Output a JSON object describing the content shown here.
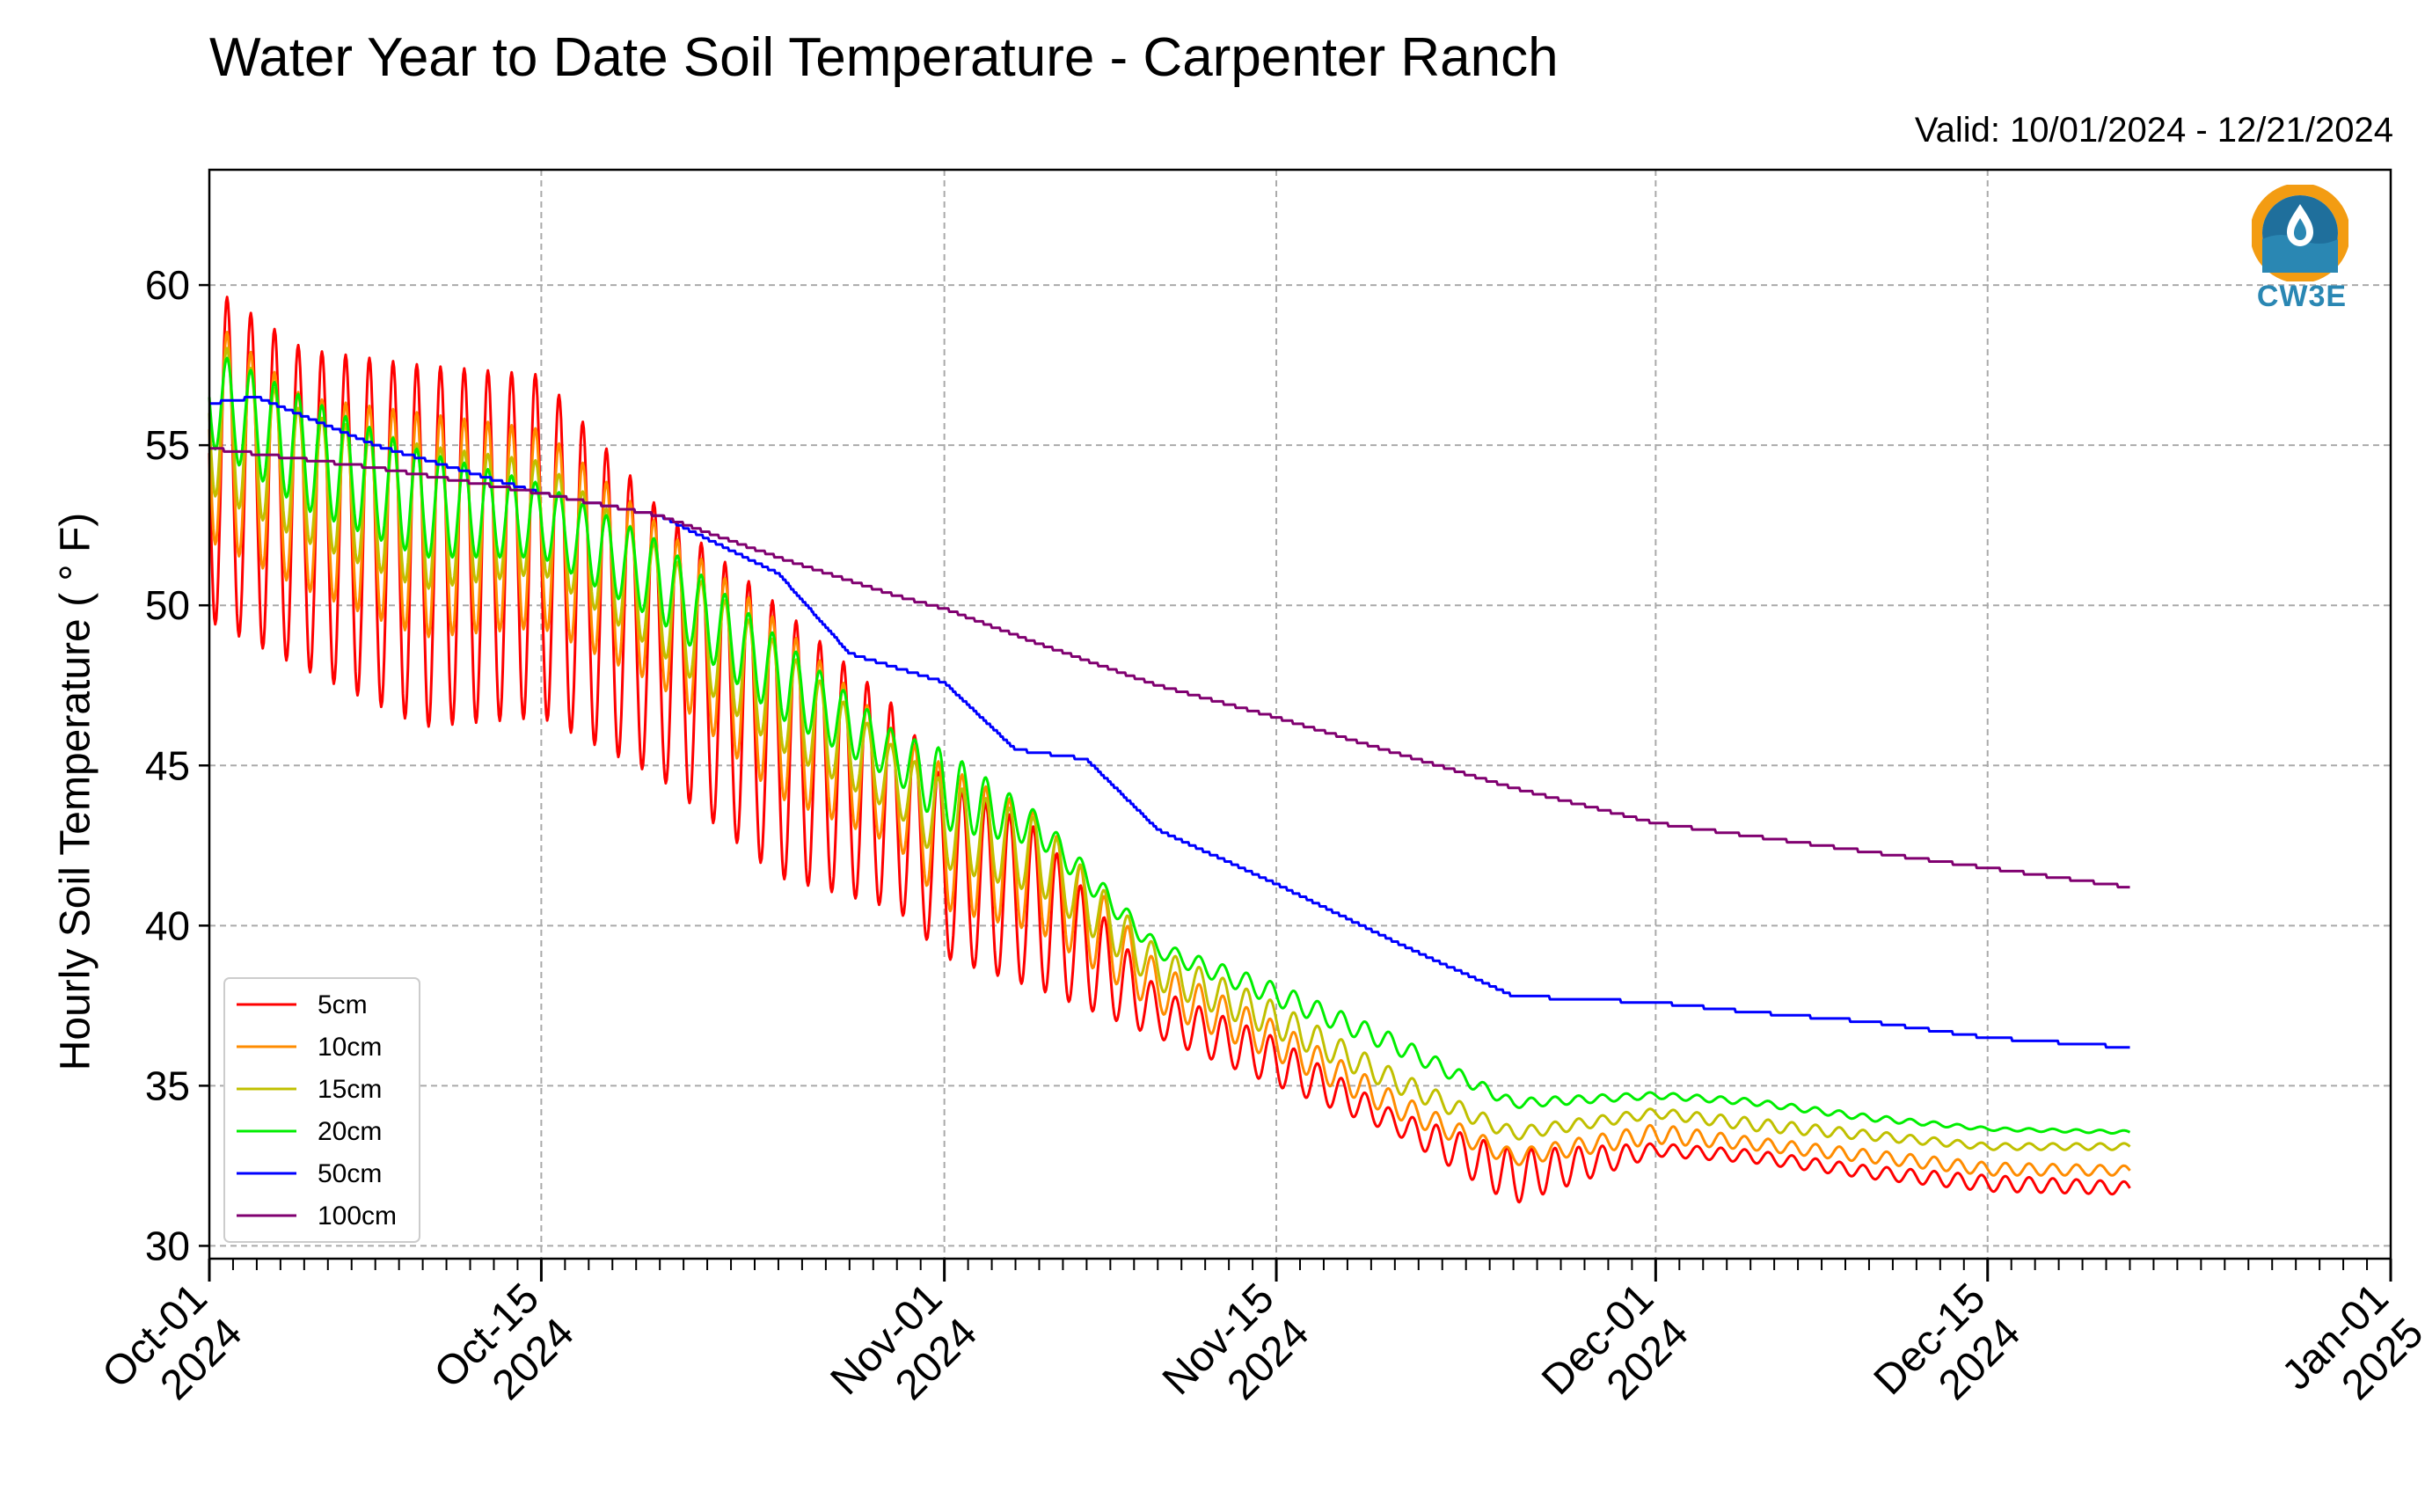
{
  "chart_data": {
    "type": "line",
    "title": "Water Year to Date Soil Temperature - Carpenter Ranch",
    "subtitle": "Valid: 10/01/2024 - 12/21/2024",
    "xlabel": "",
    "ylabel": "Hourly Soil Temperature ($^\\circ$F)",
    "ylabel_display": "Hourly Soil Temperature ( ° F)",
    "xlim": [
      "2024-10-01",
      "2025-01-01"
    ],
    "ylim": [
      29.6,
      63.6
    ],
    "yticks": [
      30,
      35,
      40,
      45,
      50,
      55,
      60
    ],
    "xticks": [
      {
        "date": "2024-10-01",
        "label1": "Oct-01",
        "label2": "2024"
      },
      {
        "date": "2024-10-15",
        "label1": "Oct-15",
        "label2": "2024"
      },
      {
        "date": "2024-11-01",
        "label1": "Nov-01",
        "label2": "2024"
      },
      {
        "date": "2024-11-15",
        "label1": "Nov-15",
        "label2": "2024"
      },
      {
        "date": "2024-12-01",
        "label1": "Dec-01",
        "label2": "2024"
      },
      {
        "date": "2024-12-15",
        "label1": "Dec-15",
        "label2": "2024"
      },
      {
        "date": "2025-01-01",
        "label1": "Jan-01",
        "label2": "2025"
      }
    ],
    "grid": true,
    "legend_position": "lower-left",
    "series": [
      {
        "name": "5cm",
        "color": "#ff0000",
        "daily_swing": true,
        "x": [
          "2024-10-01",
          "2024-10-05",
          "2024-10-10",
          "2024-10-15",
          "2024-10-20",
          "2024-10-25",
          "2024-10-30",
          "2024-11-01",
          "2024-11-05",
          "2024-11-10",
          "2024-11-15",
          "2024-11-20",
          "2024-11-25",
          "2024-12-01",
          "2024-12-05",
          "2024-12-10",
          "2024-12-15",
          "2024-12-21"
        ],
        "y": [
          55.0,
          54.0,
          52.5,
          52.0,
          50.0,
          46.5,
          43.0,
          42.0,
          39.5,
          37.0,
          35.5,
          34.0,
          32.0,
          33.0,
          32.8,
          32.3,
          32.0,
          31.7
        ],
        "y_lo": [
          49.5,
          48.0,
          46.2,
          46.5,
          44.6,
          41.5,
          40.5,
          39.0,
          38.0,
          36.5,
          35.0,
          33.5,
          31.3,
          32.8,
          32.6,
          32.1,
          31.7,
          31.6
        ],
        "y_hi": [
          60.0,
          58.0,
          57.5,
          57.2,
          53.0,
          50.0,
          46.8,
          44.5,
          43.0,
          38.0,
          36.5,
          34.2,
          33.0,
          33.2,
          33.0,
          32.5,
          32.2,
          32.0
        ]
      },
      {
        "name": "10cm",
        "color": "#ff8c00",
        "daily_swing": true,
        "x": [
          "2024-10-01",
          "2024-10-05",
          "2024-10-10",
          "2024-10-15",
          "2024-10-20",
          "2024-10-25",
          "2024-10-30",
          "2024-11-01",
          "2024-11-05",
          "2024-11-10",
          "2024-11-15",
          "2024-11-20",
          "2024-11-25",
          "2024-12-01",
          "2024-12-05",
          "2024-12-10",
          "2024-12-15",
          "2024-12-21"
        ],
        "y": [
          55.5,
          54.0,
          52.8,
          52.3,
          50.2,
          47.0,
          44.0,
          43.0,
          41.5,
          38.0,
          36.5,
          34.5,
          32.7,
          33.5,
          33.2,
          32.8,
          32.4,
          32.3
        ],
        "y_lo": [
          52.0,
          50.5,
          49.0,
          49.3,
          47.5,
          44.0,
          42.5,
          40.5,
          39.8,
          37.3,
          35.8,
          34.0,
          32.5,
          33.2,
          33.0,
          32.6,
          32.2,
          32.2
        ],
        "y_hi": [
          59.0,
          56.5,
          56.0,
          55.5,
          52.5,
          49.5,
          46.0,
          45.0,
          43.5,
          38.8,
          37.0,
          34.8,
          33.0,
          33.8,
          33.4,
          33.0,
          32.6,
          32.5
        ]
      },
      {
        "name": "15cm",
        "color": "#c0c000",
        "daily_swing": true,
        "x": [
          "2024-10-01",
          "2024-10-05",
          "2024-10-10",
          "2024-10-15",
          "2024-10-20",
          "2024-10-25",
          "2024-10-30",
          "2024-11-01",
          "2024-11-05",
          "2024-11-10",
          "2024-11-15",
          "2024-11-20",
          "2024-11-25",
          "2024-12-01",
          "2024-12-05",
          "2024-12-10",
          "2024-12-15",
          "2024-12-21"
        ],
        "y": [
          56.0,
          54.5,
          53.0,
          52.5,
          50.5,
          47.5,
          44.5,
          43.5,
          42.5,
          38.5,
          37.0,
          35.2,
          33.5,
          34.1,
          33.8,
          33.5,
          33.1,
          33.1
        ],
        "y_lo": [
          53.5,
          52.0,
          50.5,
          51.0,
          48.5,
          45.5,
          43.5,
          41.8,
          41.0,
          38.0,
          36.5,
          34.8,
          33.3,
          34.0,
          33.6,
          33.3,
          33.0,
          33.0
        ],
        "y_hi": [
          58.5,
          56.0,
          55.0,
          54.5,
          51.8,
          48.8,
          45.5,
          44.5,
          43.3,
          39.3,
          37.6,
          35.5,
          33.7,
          34.3,
          34.0,
          33.6,
          33.2,
          33.2
        ]
      },
      {
        "name": "20cm",
        "color": "#00ee00",
        "daily_swing": true,
        "x": [
          "2024-10-01",
          "2024-10-05",
          "2024-10-10",
          "2024-10-15",
          "2024-10-20",
          "2024-10-25",
          "2024-10-30",
          "2024-11-01",
          "2024-11-05",
          "2024-11-10",
          "2024-11-15",
          "2024-11-20",
          "2024-11-25",
          "2024-12-01",
          "2024-12-05",
          "2024-12-10",
          "2024-12-15",
          "2024-12-21"
        ],
        "y": [
          57.0,
          55.0,
          53.5,
          52.8,
          51.0,
          48.0,
          45.2,
          44.5,
          43.2,
          39.2,
          38.0,
          36.3,
          34.4,
          34.7,
          34.5,
          34.0,
          33.6,
          33.5
        ],
        "y_lo": [
          55.0,
          53.0,
          51.5,
          51.5,
          49.5,
          46.5,
          44.5,
          43.0,
          42.5,
          39.0,
          37.5,
          36.0,
          34.3,
          34.6,
          34.4,
          33.9,
          33.6,
          33.5
        ],
        "y_hi": [
          58.0,
          56.5,
          54.8,
          53.8,
          52.0,
          49.0,
          46.0,
          45.5,
          43.5,
          39.5,
          38.2,
          36.6,
          34.6,
          34.8,
          34.6,
          34.1,
          33.7,
          33.6
        ]
      },
      {
        "name": "50cm",
        "color": "#0000ff",
        "daily_swing": false,
        "x": [
          "2024-10-01",
          "2024-10-03",
          "2024-10-08",
          "2024-10-15",
          "2024-10-20",
          "2024-10-25",
          "2024-10-28",
          "2024-11-01",
          "2024-11-04",
          "2024-11-07",
          "2024-11-10",
          "2024-11-15",
          "2024-11-20",
          "2024-11-25",
          "2024-12-01",
          "2024-12-05",
          "2024-12-10",
          "2024-12-15",
          "2024-12-21"
        ],
        "y": [
          56.3,
          56.5,
          55.0,
          53.5,
          52.8,
          51.0,
          48.5,
          47.6,
          45.5,
          45.2,
          43.0,
          41.3,
          39.5,
          37.8,
          37.6,
          37.3,
          37.0,
          36.5,
          36.2
        ]
      },
      {
        "name": "100cm",
        "color": "#800070",
        "daily_swing": false,
        "x": [
          "2024-10-01",
          "2024-10-08",
          "2024-10-15",
          "2024-10-20",
          "2024-10-25",
          "2024-10-30",
          "2024-11-01",
          "2024-11-05",
          "2024-11-10",
          "2024-11-15",
          "2024-11-20",
          "2024-11-25",
          "2024-12-01",
          "2024-12-05",
          "2024-12-10",
          "2024-12-15",
          "2024-12-21"
        ],
        "y": [
          54.9,
          54.3,
          53.5,
          52.8,
          51.5,
          50.3,
          49.9,
          48.8,
          47.5,
          46.5,
          45.4,
          44.3,
          43.2,
          42.8,
          42.3,
          41.8,
          41.2
        ]
      }
    ]
  },
  "logo": {
    "text": "CW3E",
    "color": "#2a87b3",
    "accent": "#f39c12"
  }
}
